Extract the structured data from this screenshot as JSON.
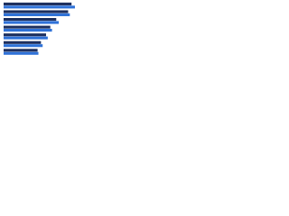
{
  "chart_data": {
    "type": "bar",
    "orientation": "horizontal",
    "categories": [
      null,
      null,
      null,
      null,
      null,
      null,
      null
    ],
    "series": [
      {
        "color": "#1d2f5e",
        "values": [
          80,
          76,
          62,
          55,
          50,
          44,
          40
        ]
      },
      {
        "color": "#2f72d8",
        "values": [
          84,
          78,
          65,
          57,
          52,
          46,
          41
        ]
      }
    ],
    "xlim": [
      0,
      100
    ]
  }
}
